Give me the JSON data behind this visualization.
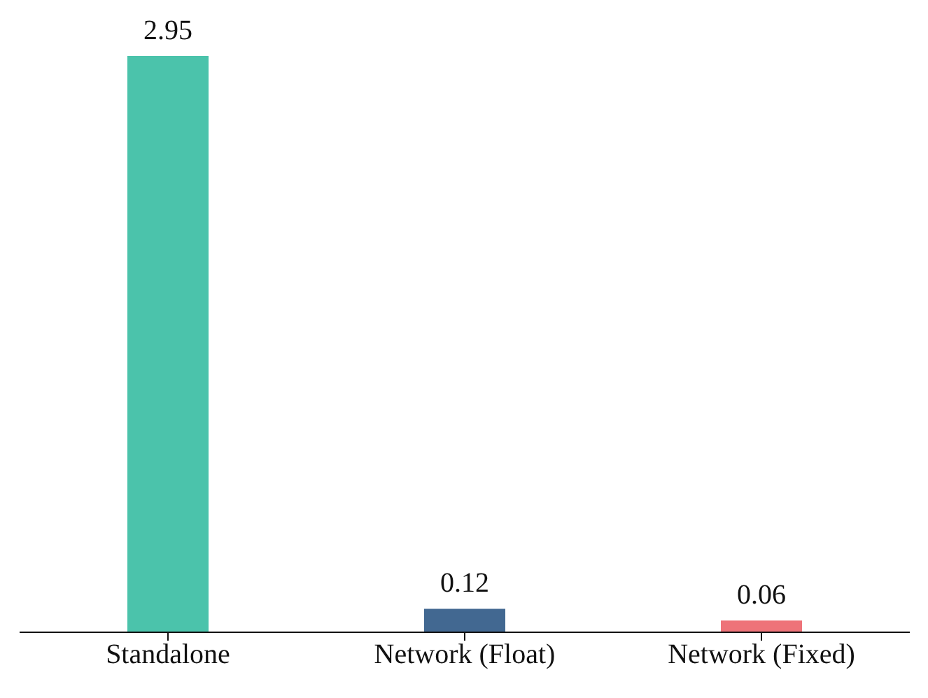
{
  "chart_data": {
    "type": "bar",
    "categories": [
      "Standalone",
      "Network (Float)",
      "Network (Fixed)"
    ],
    "values": [
      2.95,
      0.12,
      0.06
    ],
    "colors": [
      "#4bc3ab",
      "#426891",
      "#ee7379"
    ],
    "data_labels": true,
    "tick_labels": "x"
  }
}
